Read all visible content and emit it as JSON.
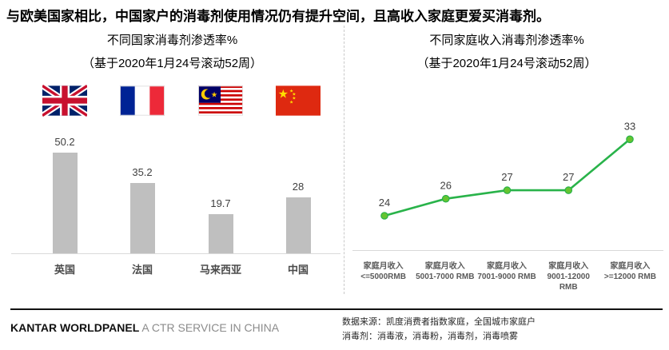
{
  "page_title": "与欧美国家相比，中国家户的消毒剂使用情况仍有提升空间，且高收入家庭更爱买消毒剂。",
  "footer": {
    "brand_bold": "KANTAR WORLDPANEL",
    "brand_rest": " A CTR SERVICE IN CHINA",
    "source_line1": "数据来源：凯度消费者指数家庭，全国城市家庭户",
    "source_line2": "消毒剂：消毒液，消毒粉，消毒剂，消毒喷雾"
  },
  "colors": {
    "bar": "#bfbfbf",
    "line": "#29b34a",
    "marker_fill": "#66c430",
    "marker_stroke": "#29b34a",
    "axis": "#d9d9d9",
    "value_text": "#404040"
  },
  "chart_data": [
    {
      "type": "bar",
      "title": "不同国家消毒剂渗透率%",
      "subtitle": "（基于2020年1月24号滚动52周）",
      "categories": [
        "英国",
        "法国",
        "马来西亚",
        "中国"
      ],
      "values": [
        50.2,
        35.2,
        19.7,
        28
      ],
      "flags": [
        "uk",
        "france",
        "malaysia",
        "china"
      ],
      "ylim": [
        0,
        55
      ],
      "grid": false,
      "legend": "none",
      "bar_color": "#bfbfbf",
      "data_labels": true
    },
    {
      "type": "line",
      "title": "不同家庭收入消毒剂渗透率%",
      "subtitle": "（基于2020年1月24号滚动52周）",
      "categories": [
        {
          "line1": "家庭月收入",
          "line2": "<=5000RMB"
        },
        {
          "line1": "家庭月收入",
          "line2": "5001-7000 RMB"
        },
        {
          "line1": "家庭月收入",
          "line2": "7001-9000 RMB"
        },
        {
          "line1": "家庭月收入",
          "line2": "9001-12000 RMB"
        },
        {
          "line1": "家庭月收入",
          "line2": ">=12000  RMB"
        }
      ],
      "values": [
        24,
        26,
        27,
        27,
        33
      ],
      "ylim": [
        20,
        35
      ],
      "grid": false,
      "legend": "none",
      "line_color": "#29b34a",
      "data_labels": true
    }
  ]
}
